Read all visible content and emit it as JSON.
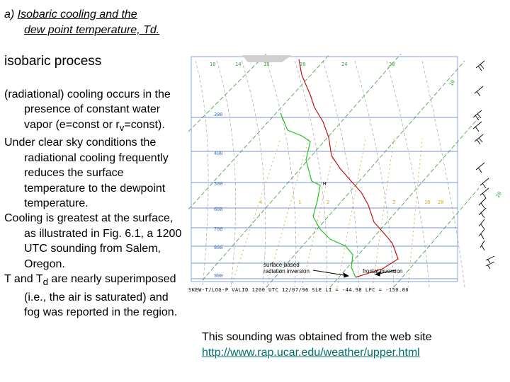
{
  "title": {
    "label": "a)",
    "line1": "Isobaric cooling and the",
    "line2": "dew point temperature, Td."
  },
  "heading": "isobaric process",
  "body": {
    "p1": "(radiational) cooling occurs in the presence of constant water vapor (e=const or rv=const).",
    "p1_before_sub": "(radiational) cooling occurs in the presence of constant water vapor (e=const or r",
    "p1_sub": "v",
    "p1_after_sub": "=const).",
    "p2": "Under clear sky conditions the radiational cooling frequently reduces the surface temperature to the dewpoint temperature.",
    "p3": "Cooling is greatest at the surface, as illustrated in Fig. 6.1, a 1200 UTC sounding from Salem, Oregon.",
    "p4_t": "T and T",
    "p4_sub": "d",
    "p4_rest": " are nearly superimposed (i.e., the air is saturated) and fog was reported in the region."
  },
  "diagram": {
    "top_temp_labels": [
      "10",
      "14",
      "18",
      "20",
      "24",
      "30"
    ],
    "left_pressure_labels": [
      "300",
      "400",
      "500",
      "600",
      "700",
      "800",
      "900"
    ],
    "mixing_ratio_labels": [
      "4",
      "1",
      "2",
      "3",
      "16",
      "20"
    ],
    "side_labels": [
      "10",
      "20"
    ],
    "high_marker": "H",
    "annotation_surface": "surface-based",
    "annotation_radiation": "radiation inversion",
    "annotation_frontal": "frontal inversion",
    "footer": "SKEW-T/LOG-P VALID 1200 UTC 12/07/96   SLE          LI = -44.98   LFC = -150.00"
  },
  "source": {
    "text": "This sounding was obtained from the web site",
    "url": "http://www.rap.ucar.edu/weather/upper.html"
  },
  "colors": {
    "temperature_line": "#c0140a",
    "dewpoint_line": "#22c422",
    "isotherms": "#3a9a3a",
    "dry_adiabats": "#b0b0b0",
    "mixing_ratio": "#e0a020",
    "isobars": "#4a6fc8",
    "link": "#00706b"
  }
}
